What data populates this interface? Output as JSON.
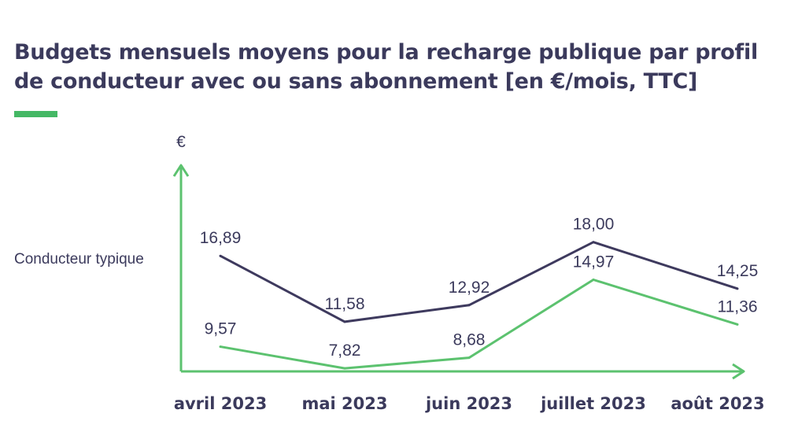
{
  "title_line1": "Budgets mensuels moyens pour la recharge publique par profil",
  "title_line2": "de conducteur avec ou sans abonnement [en €/mois, TTC]",
  "colors": {
    "title": "#3b3a5c",
    "accent": "#44b864",
    "axis": "#5cc26f",
    "series_with": "#3e3a5e",
    "series_without": "#5cc26f",
    "text": "#3b3a5c"
  },
  "chart_data": {
    "type": "line",
    "title": "Budgets mensuels moyens pour la recharge publique par profil de conducteur avec ou sans abonnement [en €/mois, TTC]",
    "ylabel": "€",
    "row_label": "Conducteur typique",
    "categories": [
      "avril 2023",
      "mai 2023",
      "juin 2023",
      "juillet 2023",
      "août 2023"
    ],
    "series": [
      {
        "values": [
          16.89,
          11.58,
          12.92,
          18.0,
          14.25
        ],
        "labels": [
          "16,89",
          "11,58",
          "12,92",
          "18,00",
          "14,25"
        ]
      },
      {
        "values": [
          9.57,
          7.82,
          8.68,
          14.97,
          11.36
        ],
        "labels": [
          "9,57",
          "7,82",
          "8,68",
          "14,97",
          "11,36"
        ]
      }
    ],
    "ylim": [
      7,
      20
    ],
    "grid": false,
    "legend": "none"
  }
}
